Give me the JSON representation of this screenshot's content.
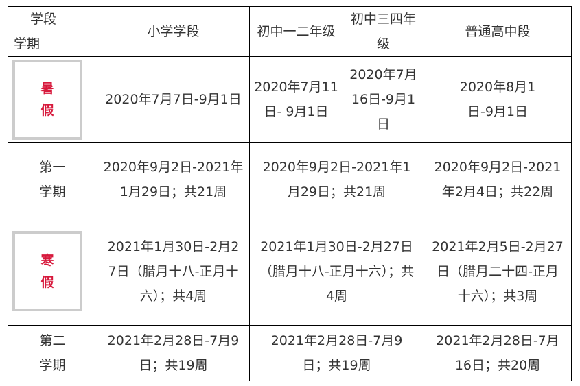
{
  "header": {
    "corner_top": "学段",
    "corner_bottom": "学期",
    "cols": [
      "小学学段",
      "初中一二年级",
      "初中三四年级",
      "普通高中段"
    ]
  },
  "rows": [
    {
      "label": "暑假",
      "highlight": true,
      "cells": [
        "2020年7月7日-9月1日",
        "2020年7月11日- 9月1日",
        "2020年7月16日-9月1日",
        "2020年8月1日-9月1日"
      ]
    },
    {
      "label": "第一学期",
      "cells": [
        "2020年9月2日-2021年1月29日；共21周",
        "2020年9月2日-2021年1月29日；共21周",
        "2020年9月2日-2021年2月4日；共22周"
      ]
    },
    {
      "label": "寒假",
      "highlight": true,
      "cells": [
        "2021年1月30日-2月27日（腊月十八-正月十六）；共4周",
        "2021年1月30日-2月27日（腊月十八-正月十六）；共4周",
        "2021年2月5日-2月27日（腊月二十四-正月十六）；共3周"
      ]
    },
    {
      "label": "第二学期",
      "cells": [
        "2021年2月28日-7月9日；共19周",
        "2021年2月28日-7月9日；共19周",
        "2021年2月28日-7月16日；共20周"
      ]
    }
  ],
  "colors": {
    "highlight_text": "#d7193c",
    "text": "#333333",
    "border": "#000000"
  }
}
